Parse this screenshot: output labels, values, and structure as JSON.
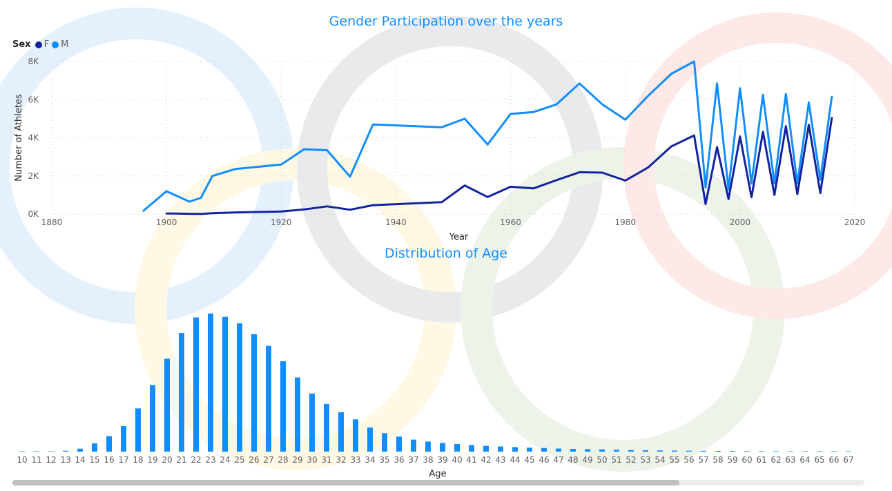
{
  "chart_data": [
    {
      "type": "line",
      "title": "Gender Participation over the years",
      "xlabel": "Year",
      "ylabel": "Number of Athletes",
      "xlim": [
        1880,
        2020
      ],
      "ylim": [
        0,
        8000
      ],
      "x_ticks": [
        1880,
        1900,
        1920,
        1940,
        1960,
        1980,
        2000,
        2020
      ],
      "y_ticks": [
        {
          "value": 0,
          "label": "0K"
        },
        {
          "value": 2000,
          "label": "2K"
        },
        {
          "value": 4000,
          "label": "4K"
        },
        {
          "value": 6000,
          "label": "6K"
        },
        {
          "value": 8000,
          "label": "8K"
        }
      ],
      "grid": true,
      "legend": {
        "title": "Sex",
        "placement": "top-left"
      },
      "series": [
        {
          "name": "F",
          "color": "#12239E",
          "points": [
            [
              1900,
              33
            ],
            [
              1904,
              16
            ],
            [
              1906,
              11
            ],
            [
              1908,
              47
            ],
            [
              1912,
              87
            ],
            [
              1920,
              134
            ],
            [
              1924,
              244
            ],
            [
              1928,
              404
            ],
            [
              1932,
              229
            ],
            [
              1936,
              468
            ],
            [
              1948,
              628
            ],
            [
              1952,
              1497
            ],
            [
              1956,
              893
            ],
            [
              1960,
              1435
            ],
            [
              1964,
              1348
            ],
            [
              1968,
              1777
            ],
            [
              1972,
              2193
            ],
            [
              1976,
              2172
            ],
            [
              1980,
              1756
            ],
            [
              1984,
              2447
            ],
            [
              1988,
              3543
            ],
            [
              1992,
              4124
            ],
            [
              1994,
              521
            ],
            [
              1996,
              3512
            ],
            [
              1998,
              787
            ],
            [
              2000,
              4069
            ],
            [
              2002,
              885
            ],
            [
              2004,
              4306
            ],
            [
              2006,
              1000
            ],
            [
              2008,
              4609
            ],
            [
              2010,
              1045
            ],
            [
              2012,
              4676
            ],
            [
              2014,
              1100
            ],
            [
              2016,
              5034
            ]
          ]
        },
        {
          "name": "M",
          "color": "#118DFF",
          "points": [
            [
              1896,
              176
            ],
            [
              1900,
              1200
            ],
            [
              1904,
              650
            ],
            [
              1906,
              850
            ],
            [
              1908,
              2000
            ],
            [
              1912,
              2360
            ],
            [
              1920,
              2600
            ],
            [
              1924,
              3400
            ],
            [
              1928,
              3350
            ],
            [
              1932,
              1960
            ],
            [
              1936,
              4700
            ],
            [
              1948,
              4550
            ],
            [
              1952,
              5000
            ],
            [
              1956,
              3650
            ],
            [
              1960,
              5250
            ],
            [
              1964,
              5350
            ],
            [
              1968,
              5750
            ],
            [
              1972,
              6850
            ],
            [
              1976,
              5750
            ],
            [
              1980,
              4950
            ],
            [
              1984,
              6200
            ],
            [
              1988,
              7350
            ],
            [
              1992,
              8000
            ],
            [
              1994,
              1400
            ],
            [
              1996,
              6850
            ],
            [
              1998,
              1300
            ],
            [
              2000,
              6600
            ],
            [
              2002,
              1600
            ],
            [
              2004,
              6250
            ],
            [
              2006,
              1600
            ],
            [
              2008,
              6300
            ],
            [
              2010,
              1600
            ],
            [
              2012,
              5850
            ],
            [
              2014,
              1800
            ],
            [
              2016,
              6150
            ]
          ]
        }
      ]
    },
    {
      "type": "bar",
      "title": "Distribution of Age",
      "xlabel": "Age",
      "ylabel": "",
      "color": "#118DFF",
      "categories": [
        "10",
        "11",
        "12",
        "13",
        "14",
        "15",
        "16",
        "17",
        "18",
        "19",
        "20",
        "21",
        "22",
        "23",
        "24",
        "25",
        "26",
        "27",
        "28",
        "29",
        "30",
        "31",
        "32",
        "33",
        "34",
        "35",
        "36",
        "37",
        "38",
        "39",
        "40",
        "41",
        "42",
        "43",
        "44",
        "45",
        "46",
        "47",
        "48",
        "49",
        "50",
        "51",
        "52",
        "53",
        "54",
        "55",
        "56",
        "57",
        "58",
        "59",
        "60",
        "61",
        "62",
        "63",
        "64",
        "65",
        "66",
        "67"
      ],
      "values": [
        8,
        30,
        180,
        660,
        2300,
        6400,
        12000,
        19800,
        33500,
        51600,
        72000,
        92000,
        104000,
        107000,
        104500,
        99400,
        91000,
        82000,
        70000,
        57500,
        45000,
        37000,
        30500,
        25000,
        18700,
        14300,
        11700,
        9300,
        7800,
        6700,
        5900,
        5100,
        4500,
        4000,
        3500,
        3100,
        2800,
        2400,
        2100,
        1900,
        1700,
        1450,
        1200,
        1050,
        900,
        800,
        700,
        620,
        550,
        480,
        420,
        380,
        340,
        300,
        270,
        240,
        220,
        200
      ]
    }
  ]
}
